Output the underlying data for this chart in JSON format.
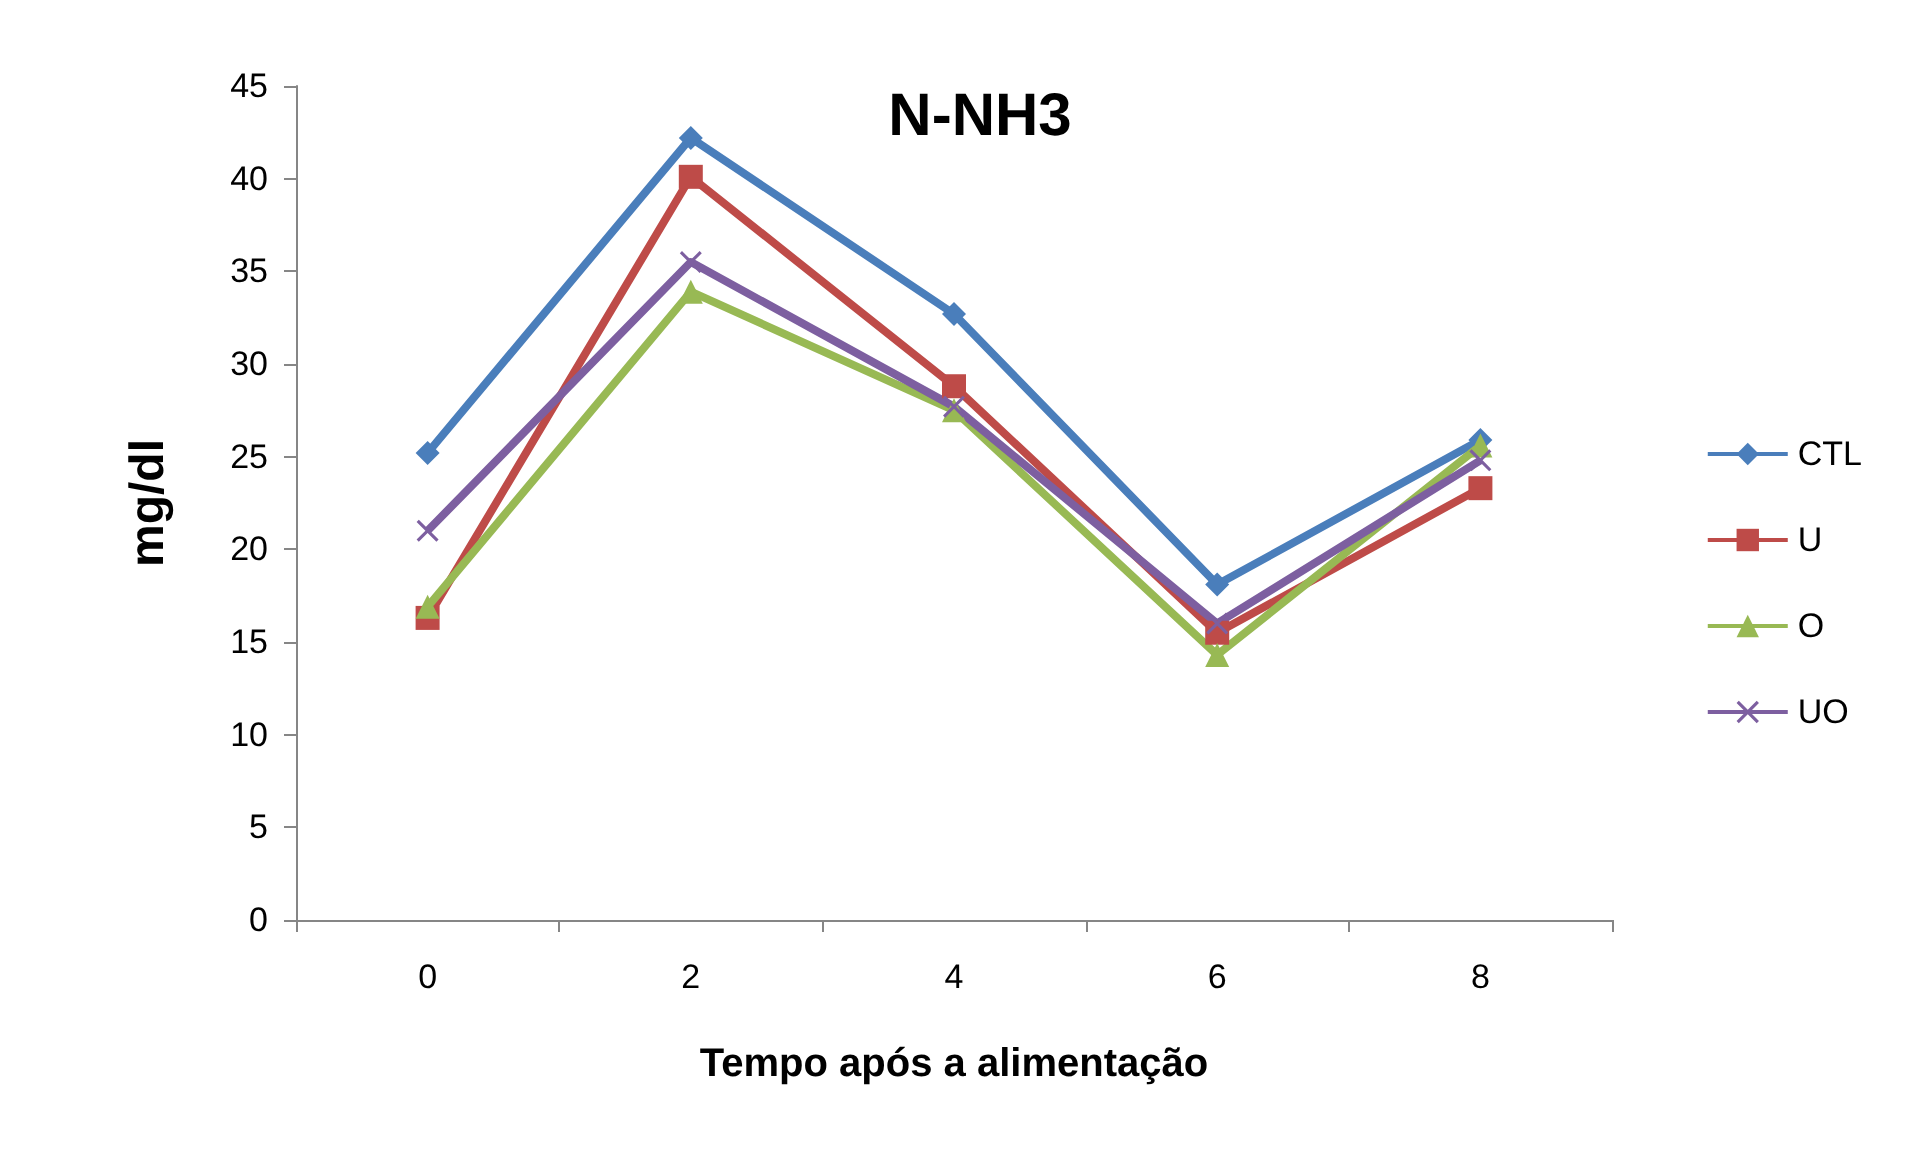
{
  "chart_data": {
    "type": "line",
    "title": "N-NH3",
    "xlabel": "Tempo após a alimentação",
    "ylabel": "mg/dl",
    "categories": [
      "0",
      "2",
      "4",
      "6",
      "8"
    ],
    "series": [
      {
        "name": "CTL",
        "color": "#4a7ebb",
        "marker": "diamond",
        "values": [
          25.2,
          42.2,
          32.7,
          18.1,
          25.9
        ]
      },
      {
        "name": "U",
        "color": "#be4b48",
        "marker": "square",
        "values": [
          16.3,
          40.1,
          28.8,
          15.5,
          23.3
        ]
      },
      {
        "name": "O",
        "color": "#98b954",
        "marker": "triangle",
        "values": [
          16.9,
          33.9,
          27.5,
          14.3,
          25.6
        ]
      },
      {
        "name": "UO",
        "color": "#7d5fa0",
        "marker": "cross",
        "values": [
          21.0,
          35.5,
          27.7,
          16.0,
          24.8
        ]
      }
    ],
    "ylim": [
      0,
      45
    ],
    "yticks": [
      0,
      5,
      10,
      15,
      20,
      25,
      30,
      35,
      40,
      45
    ],
    "grid": false,
    "legend": "right",
    "line_style": "solid"
  }
}
